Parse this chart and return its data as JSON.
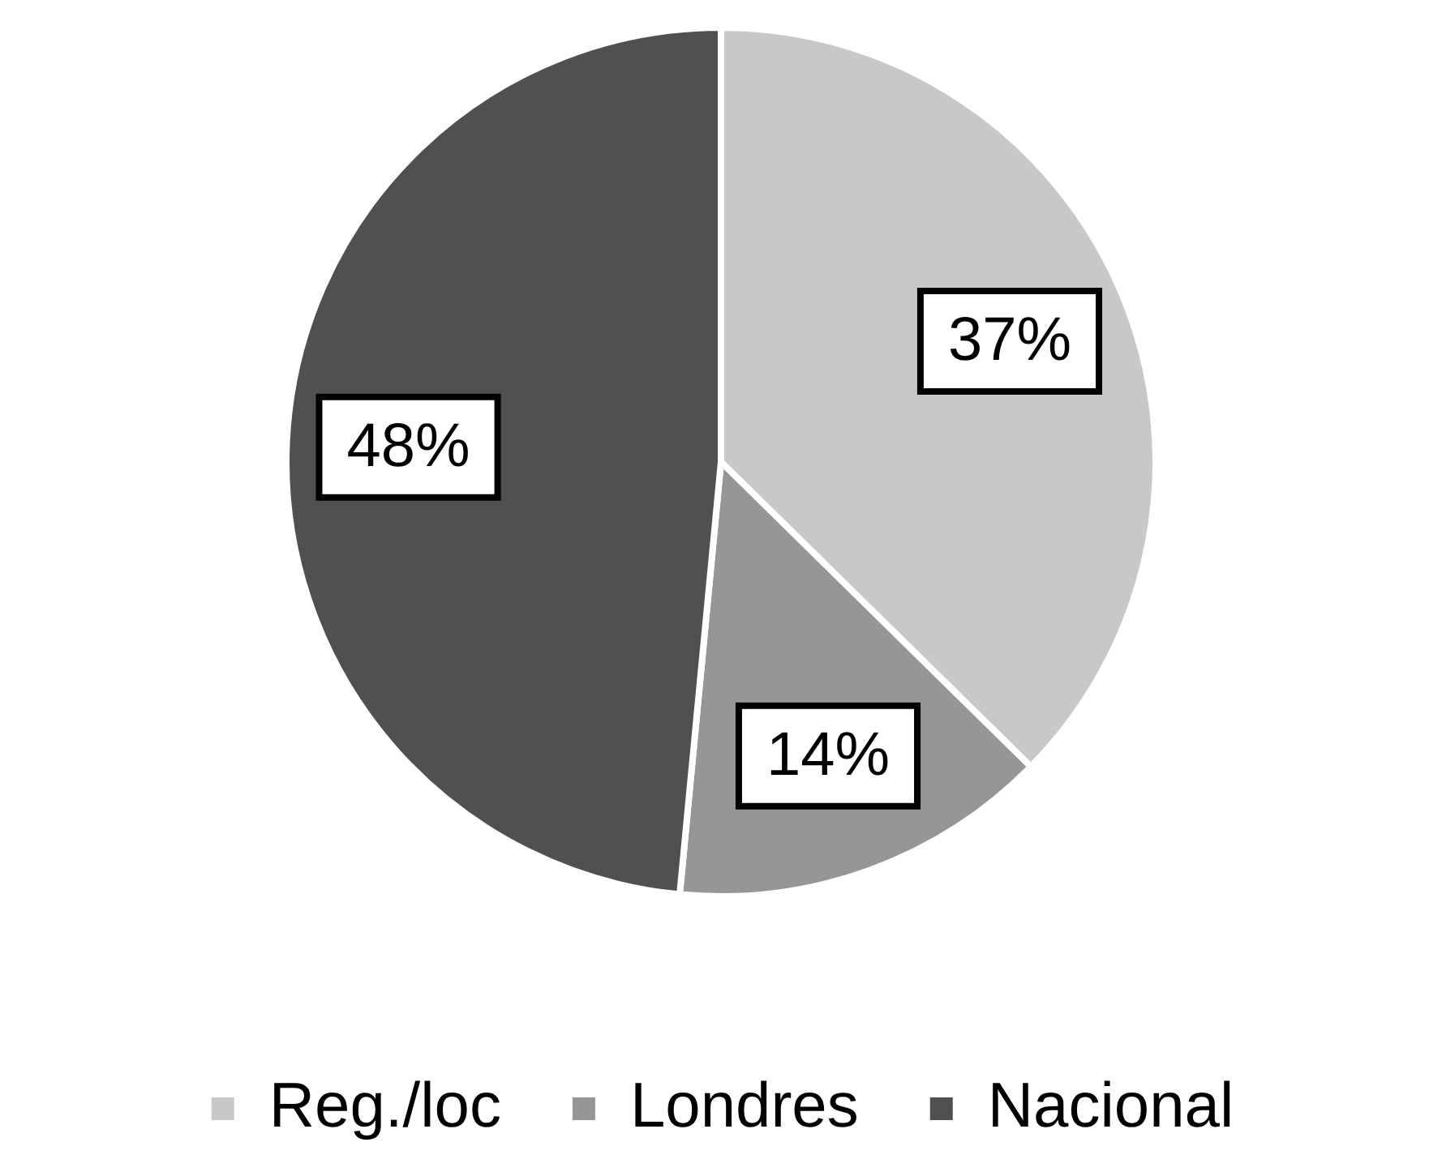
{
  "chart_data": {
    "type": "pie",
    "categories": [
      "Reg./loc",
      "Londres",
      "Nacional"
    ],
    "values": [
      37,
      14,
      48
    ],
    "colors": [
      "#c8c8c8",
      "#969696",
      "#505050"
    ],
    "value_labels": [
      "37%",
      "14%",
      "48%"
    ],
    "legend": "bottom"
  }
}
